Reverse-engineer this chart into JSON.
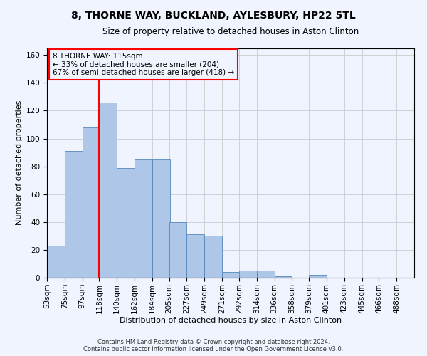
{
  "title": "8, THORNE WAY, BUCKLAND, AYLESBURY, HP22 5TL",
  "subtitle": "Size of property relative to detached houses in Aston Clinton",
  "xlabel": "Distribution of detached houses by size in Aston Clinton",
  "ylabel": "Number of detached properties",
  "footer_line1": "Contains HM Land Registry data © Crown copyright and database right 2024.",
  "footer_line2": "Contains public sector information licensed under the Open Government Licence v3.0.",
  "annotation_line1": "8 THORNE WAY: 115sqm",
  "annotation_line2": "← 33% of detached houses are smaller (204)",
  "annotation_line3": "67% of semi-detached houses are larger (418) →",
  "categories": [
    "53sqm",
    "75sqm",
    "97sqm",
    "118sqm",
    "140sqm",
    "162sqm",
    "184sqm",
    "205sqm",
    "227sqm",
    "249sqm",
    "271sqm",
    "292sqm",
    "314sqm",
    "336sqm",
    "358sqm",
    "379sqm",
    "401sqm",
    "423sqm",
    "445sqm",
    "466sqm",
    "488sqm"
  ],
  "bin_edges": [
    53,
    75,
    97,
    118,
    140,
    162,
    184,
    205,
    227,
    249,
    271,
    292,
    314,
    336,
    358,
    379,
    401,
    423,
    445,
    466,
    488
  ],
  "bin_width": 22,
  "values": [
    23,
    91,
    108,
    126,
    79,
    85,
    85,
    40,
    31,
    30,
    4,
    5,
    5,
    1,
    0,
    2,
    0,
    0,
    0,
    0,
    0
  ],
  "bar_color": "#aec6e8",
  "bar_edge_color": "#5588bb",
  "vline_color": "red",
  "annotation_box_edge_color": "red",
  "grid_color": "#cccccc",
  "ylim": [
    0,
    165
  ],
  "yticks": [
    0,
    20,
    40,
    60,
    80,
    100,
    120,
    140,
    160
  ],
  "background_color": "#f0f4ff",
  "title_fontsize": 10,
  "subtitle_fontsize": 8.5,
  "axis_label_fontsize": 8,
  "tick_fontsize": 7.5,
  "footer_fontsize": 6,
  "annotation_fontsize": 7.5
}
